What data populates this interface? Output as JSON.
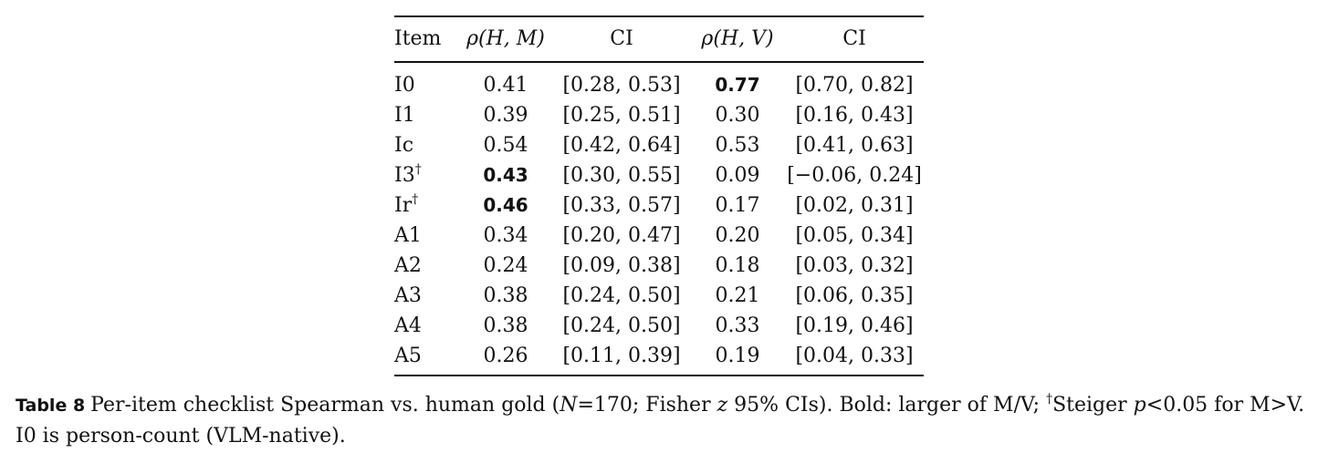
{
  "table": {
    "headers": {
      "item": "Item",
      "rho_hm": "ρ(H, M)",
      "ci_m": "CI",
      "rho_hv": "ρ(H, V)",
      "ci_v": "CI"
    },
    "rows": [
      {
        "item": "I0",
        "dagger": "",
        "rho_hm": "0.41",
        "bold_m": false,
        "ci_m": "[0.28, 0.53]",
        "rho_hv": "0.77",
        "bold_v": true,
        "ci_v": "[0.70, 0.82]"
      },
      {
        "item": "I1",
        "dagger": "",
        "rho_hm": "0.39",
        "bold_m": false,
        "ci_m": "[0.25, 0.51]",
        "rho_hv": "0.30",
        "bold_v": false,
        "ci_v": "[0.16, 0.43]"
      },
      {
        "item": "Ic",
        "dagger": "",
        "rho_hm": "0.54",
        "bold_m": false,
        "ci_m": "[0.42, 0.64]",
        "rho_hv": "0.53",
        "bold_v": false,
        "ci_v": "[0.41, 0.63]"
      },
      {
        "item": "I3",
        "dagger": "†",
        "rho_hm": "0.43",
        "bold_m": true,
        "ci_m": "[0.30, 0.55]",
        "rho_hv": "0.09",
        "bold_v": false,
        "ci_v": "[−0.06, 0.24]"
      },
      {
        "item": "Ir",
        "dagger": "†",
        "rho_hm": "0.46",
        "bold_m": true,
        "ci_m": "[0.33, 0.57]",
        "rho_hv": "0.17",
        "bold_v": false,
        "ci_v": "[0.02, 0.31]"
      },
      {
        "item": "A1",
        "dagger": "",
        "rho_hm": "0.34",
        "bold_m": false,
        "ci_m": "[0.20, 0.47]",
        "rho_hv": "0.20",
        "bold_v": false,
        "ci_v": "[0.05, 0.34]"
      },
      {
        "item": "A2",
        "dagger": "",
        "rho_hm": "0.24",
        "bold_m": false,
        "ci_m": "[0.09, 0.38]",
        "rho_hv": "0.18",
        "bold_v": false,
        "ci_v": "[0.03, 0.32]"
      },
      {
        "item": "A3",
        "dagger": "",
        "rho_hm": "0.38",
        "bold_m": false,
        "ci_m": "[0.24, 0.50]",
        "rho_hv": "0.21",
        "bold_v": false,
        "ci_v": "[0.06, 0.35]"
      },
      {
        "item": "A4",
        "dagger": "",
        "rho_hm": "0.38",
        "bold_m": false,
        "ci_m": "[0.24, 0.50]",
        "rho_hv": "0.33",
        "bold_v": false,
        "ci_v": "[0.19, 0.46]"
      },
      {
        "item": "A5",
        "dagger": "",
        "rho_hm": "0.26",
        "bold_m": false,
        "ci_m": "[0.11, 0.39]",
        "rho_hv": "0.19",
        "bold_v": false,
        "ci_v": "[0.04, 0.33]"
      }
    ]
  },
  "caption": {
    "label": "Table 8",
    "text_a": "Per-item checklist Spearman vs. human gold (",
    "n_var": "N",
    "text_b": "=170; Fisher ",
    "z_var": "z",
    "text_c": " 95% CIs). Bold: larger of M/V; ",
    "dagger": "†",
    "text_d": "Steiger ",
    "p_var": "p",
    "text_e": "<0.05 for M>V. I0 is person-count (VLM-native)."
  }
}
